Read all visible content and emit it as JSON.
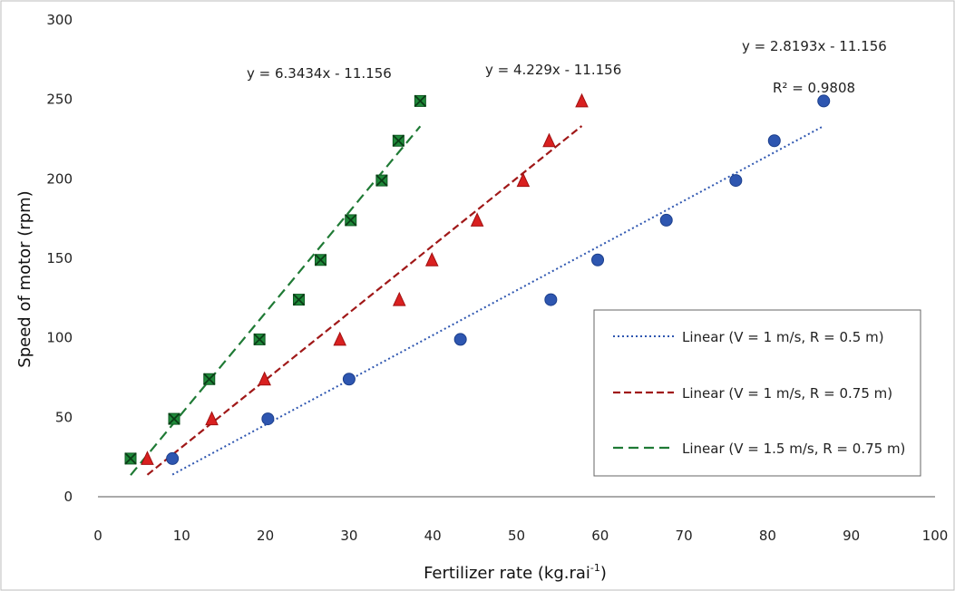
{
  "chart_data": {
    "type": "scatter",
    "xlabel": "Fertilizer rate (kg.rai",
    "xlabel_sup": "-1",
    "xlabel_close": ")",
    "ylabel": "Speed of motor (rpm)",
    "xlim": [
      0,
      100
    ],
    "ylim": [
      0,
      300
    ],
    "xticks": [
      0,
      10,
      20,
      30,
      40,
      50,
      60,
      70,
      80,
      90,
      100
    ],
    "yticks": [
      0,
      50,
      100,
      150,
      200,
      250,
      300
    ],
    "grid": false,
    "legend_position": "center-right",
    "series": [
      {
        "key": "v1r05",
        "marker": "circle",
        "color": "#2e56b0",
        "x": [
          8.9,
          20.3,
          30.0,
          43.3,
          54.1,
          59.7,
          67.9,
          76.2,
          80.8,
          86.7
        ],
        "y": [
          24,
          49,
          74,
          99,
          124,
          149,
          174,
          199,
          224,
          249
        ]
      },
      {
        "key": "v1r075",
        "marker": "triangle",
        "color": "#d92020",
        "x": [
          5.9,
          13.6,
          19.9,
          28.9,
          36.0,
          39.9,
          45.3,
          50.8,
          53.9,
          57.8
        ],
        "y": [
          24,
          49,
          74,
          99,
          124,
          149,
          174,
          199,
          224,
          249
        ]
      },
      {
        "key": "v15r075",
        "marker": "x-square",
        "color": "#1f8a3a",
        "x": [
          3.9,
          9.1,
          13.3,
          19.3,
          24.0,
          26.6,
          30.2,
          33.9,
          35.9,
          38.5
        ],
        "y": [
          24,
          49,
          74,
          99,
          124,
          149,
          174,
          199,
          224,
          249
        ]
      }
    ],
    "trendlines": [
      {
        "key": "v1r05",
        "name": "Linear (V = 1 m/s, R = 0.5 m)",
        "slope": 2.8193,
        "intercept": -11.156,
        "x_range": [
          8.9,
          86.7
        ],
        "style": "dotted",
        "color": "#2e56b0"
      },
      {
        "key": "v1r075",
        "name": "Linear (V = 1 m/s, R = 0.75 m)",
        "slope": 4.229,
        "intercept": -11.156,
        "x_range": [
          5.9,
          57.8
        ],
        "style": "dashed",
        "color": "#a01818"
      },
      {
        "key": "v15r075",
        "name": "Linear (V = 1.5 m/s, R = 0.75 m)",
        "slope": 6.3434,
        "intercept": -11.156,
        "x_range": [
          3.9,
          38.5
        ],
        "style": "dashed",
        "color": "#1f7a35"
      }
    ],
    "annotations": [
      {
        "key": "eq3",
        "text": "y = 6.3434x - 11.156"
      },
      {
        "key": "eq2",
        "text": "y = 4.229x - 11.156"
      },
      {
        "key": "eq1",
        "text": "y = 2.8193x - 11.156"
      },
      {
        "key": "r2",
        "text": "R² = 0.9808"
      }
    ]
  }
}
